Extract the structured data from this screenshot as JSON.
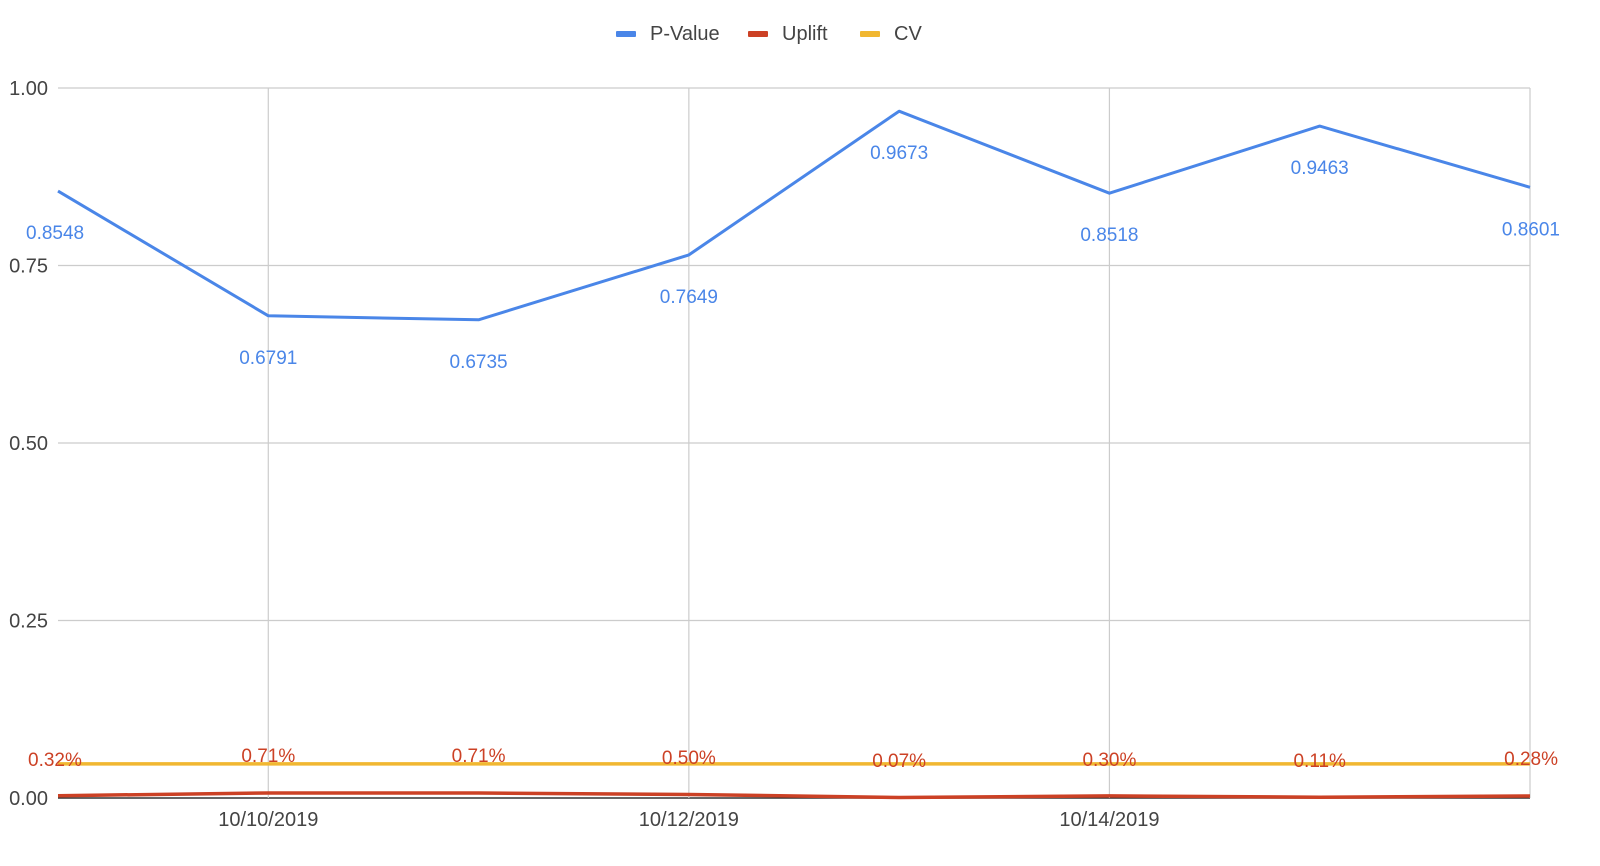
{
  "chart_data": {
    "type": "line",
    "x": [
      "10/9/2019",
      "10/10/2019",
      "10/11/2019",
      "10/12/2019",
      "10/13/2019",
      "10/14/2019",
      "10/15/2019",
      "10/16/2019"
    ],
    "x_tick_labels": [
      {
        "x": "10/10/2019",
        "label": "10/10/2019"
      },
      {
        "x": "10/12/2019",
        "label": "10/12/2019"
      },
      {
        "x": "10/14/2019",
        "label": "10/14/2019"
      }
    ],
    "y_ticks": [
      {
        "value": 0.0,
        "label": "0.00"
      },
      {
        "value": 0.25,
        "label": "0.25"
      },
      {
        "value": 0.5,
        "label": "0.50"
      },
      {
        "value": 0.75,
        "label": "0.75"
      },
      {
        "value": 1.0,
        "label": "1.00"
      }
    ],
    "ylim": [
      0,
      1
    ],
    "grid": true,
    "legend_position": "top-center",
    "title": "",
    "xlabel": "",
    "ylabel": "",
    "series": [
      {
        "name": "P-Value",
        "color": "#4a86e8",
        "values": [
          0.8548,
          0.6791,
          0.6735,
          0.7649,
          0.9673,
          0.8518,
          0.9463,
          0.8601
        ],
        "labels": [
          "0.8548",
          "0.6791",
          "0.6735",
          "0.7649",
          "0.9673",
          "0.8518",
          "0.9463",
          "0.8601"
        ],
        "label_color": "#4a86e8"
      },
      {
        "name": "Uplift",
        "color": "#cc4125",
        "values": [
          0.0032,
          0.0071,
          0.0071,
          0.005,
          0.0007,
          0.003,
          0.0011,
          0.0028
        ],
        "labels": [
          "0.32%",
          "0.71%",
          "0.71%",
          "0.50%",
          "0.07%",
          "0.30%",
          "0.11%",
          "0.28%"
        ],
        "label_color": "#cc4125"
      },
      {
        "name": "CV",
        "color": "#f1b731",
        "values": [
          0.048,
          0.048,
          0.048,
          0.048,
          0.048,
          0.048,
          0.048,
          0.048
        ]
      }
    ]
  }
}
